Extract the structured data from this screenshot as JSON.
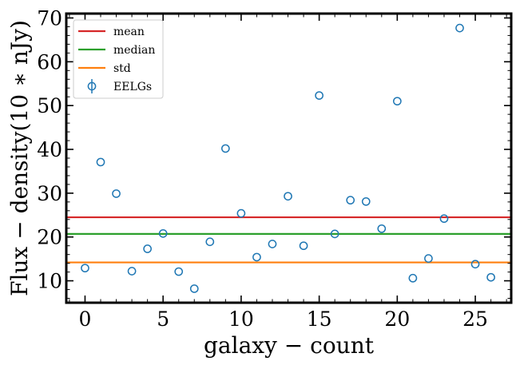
{
  "chart_data": {
    "type": "scatter",
    "title": "",
    "xlabel": "galaxy − count",
    "ylabel": "Flux − density(10 ∗ nJy)",
    "xlim": [
      -1.2,
      27.3
    ],
    "ylim": [
      5,
      71
    ],
    "xticks": [
      0,
      5,
      10,
      15,
      20,
      25
    ],
    "yticks": [
      10,
      20,
      30,
      40,
      50,
      60,
      70
    ],
    "grid": false,
    "legend_position": "top-left",
    "series": [
      {
        "name": "EELGs",
        "kind": "scatter-errorbar",
        "marker": "open-circle",
        "color": "#1f77b4",
        "x": [
          0,
          1,
          2,
          3,
          4,
          5,
          6,
          7,
          8,
          9,
          10,
          11,
          12,
          13,
          14,
          15,
          16,
          17,
          18,
          19,
          20,
          21,
          22,
          23,
          24,
          25,
          26
        ],
        "y": [
          12.9,
          37.1,
          29.9,
          12.2,
          17.3,
          20.8,
          12.1,
          8.2,
          18.9,
          40.2,
          25.4,
          15.4,
          18.4,
          29.3,
          18.0,
          52.3,
          20.7,
          28.4,
          28.1,
          21.9,
          51.0,
          10.6,
          15.1,
          24.2,
          67.7,
          13.8,
          10.8
        ]
      },
      {
        "name": "mean",
        "kind": "hline",
        "color": "#d62728",
        "y": 24.5
      },
      {
        "name": "median",
        "kind": "hline",
        "color": "#2ca02c",
        "y": 20.7
      },
      {
        "name": "std",
        "kind": "hline",
        "color": "#ff7f0e",
        "y": 14.2
      }
    ]
  }
}
